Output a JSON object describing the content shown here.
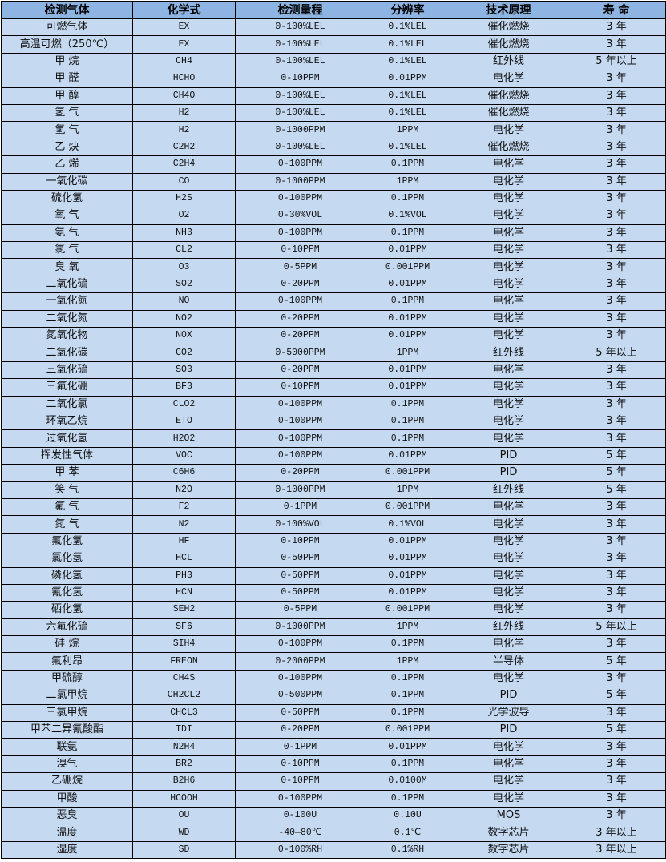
{
  "headers": [
    "检测气体",
    "化学式",
    "检测量程",
    "分辨率",
    "技术原理",
    "寿 命"
  ],
  "colors": {
    "header_bg": "#8DB4E2",
    "row_bg": "#C5D9F1",
    "border": "#000000"
  },
  "rows": [
    [
      "可燃气体",
      "EX",
      "0-100%LEL",
      "0.1%LEL",
      "催化燃烧",
      "3 年"
    ],
    [
      "高温可燃（250℃）",
      "EX",
      "0-100%LEL",
      "0.1%LEL",
      "催化燃烧",
      "3 年"
    ],
    [
      "甲 烷",
      "CH4",
      "0-100%LEL",
      "0.1%LEL",
      "红外线",
      "5 年以上"
    ],
    [
      "甲 醛",
      "HCHO",
      "0-10PPM",
      "0.01PPM",
      "电化学",
      "3 年"
    ],
    [
      "甲 醇",
      "CH4O",
      "0-100%LEL",
      "0.1%LEL",
      "催化燃烧",
      "3 年"
    ],
    [
      "氢 气",
      "H2",
      "0-100%LEL",
      "0.1%LEL",
      "催化燃烧",
      "3 年"
    ],
    [
      "氢 气",
      "H2",
      "0-1000PPM",
      "1PPM",
      "电化学",
      "3 年"
    ],
    [
      "乙 炔",
      "C2H2",
      "0-100%LEL",
      "0.1%LEL",
      "催化燃烧",
      "3 年"
    ],
    [
      "乙 烯",
      "C2H4",
      "0-100PPM",
      "0.1PPM",
      "电化学",
      "3 年"
    ],
    [
      "一氧化碳",
      "CO",
      "0-1000PPM",
      "1PPM",
      "电化学",
      "3 年"
    ],
    [
      "硫化氢",
      "H2S",
      "0-100PPM",
      "0.1PPM",
      "电化学",
      "3 年"
    ],
    [
      "氧 气",
      "O2",
      "0-30%VOL",
      "0.1%VOL",
      "电化学",
      "3 年"
    ],
    [
      "氨 气",
      "NH3",
      "0-100PPM",
      "0.1PPM",
      "电化学",
      "3 年"
    ],
    [
      "氯 气",
      "CL2",
      "0-10PPM",
      "0.01PPM",
      "电化学",
      "3 年"
    ],
    [
      "臭 氧",
      "O3",
      "0-5PPM",
      "0.001PPM",
      "电化学",
      "3 年"
    ],
    [
      "二氧化硫",
      "SO2",
      "0-20PPM",
      "0.01PPM",
      "电化学",
      "3 年"
    ],
    [
      "一氧化氮",
      "NO",
      "0-100PPM",
      "0.1PPM",
      "电化学",
      "3 年"
    ],
    [
      "二氧化氮",
      "NO2",
      "0-20PPM",
      "0.01PPM",
      "电化学",
      "3 年"
    ],
    [
      "氮氧化物",
      "NOX",
      "0-20PPM",
      "0.01PPM",
      "电化学",
      "3 年"
    ],
    [
      "二氧化碳",
      "CO2",
      "0-5000PPM",
      "1PPM",
      "红外线",
      "5 年以上"
    ],
    [
      "三氧化硫",
      "SO3",
      "0-20PPM",
      "0.01PPM",
      "电化学",
      "3 年"
    ],
    [
      "三氟化硼",
      "BF3",
      "0-10PPM",
      "0.01PPM",
      "电化学",
      "3 年"
    ],
    [
      "二氧化氯",
      "CLO2",
      "0-100PPM",
      "0.1PPM",
      "电化学",
      "3 年"
    ],
    [
      "环氧乙烷",
      "ETO",
      "0-100PPM",
      "0.1PPM",
      "电化学",
      "3 年"
    ],
    [
      "过氧化氢",
      "H2O2",
      "0-100PPM",
      "0.1PPM",
      "电化学",
      "3 年"
    ],
    [
      "挥发性气体",
      "VOC",
      "0-100PPM",
      "0.01PPM",
      "PID",
      "5 年"
    ],
    [
      "甲 苯",
      "C6H6",
      "0-20PPM",
      "0.001PPM",
      "PID",
      "5 年"
    ],
    [
      "笑 气",
      "N2O",
      "0-1000PPM",
      "1PPM",
      "红外线",
      "5 年"
    ],
    [
      "氟 气",
      "F2",
      "0-1PPM",
      "0.001PPM",
      "电化学",
      "3 年"
    ],
    [
      "氮 气",
      "N2",
      "0-100%VOL",
      "0.1%VOL",
      "电化学",
      "3 年"
    ],
    [
      "氟化氢",
      "HF",
      "0-10PPM",
      "0.01PPM",
      "电化学",
      "3 年"
    ],
    [
      "氯化氢",
      "HCL",
      "0-50PPM",
      "0.01PPM",
      "电化学",
      "3 年"
    ],
    [
      "磷化氢",
      "PH3",
      "0-50PPM",
      "0.01PPM",
      "电化学",
      "3 年"
    ],
    [
      "氰化氢",
      "HCN",
      "0-50PPM",
      "0.01PPM",
      "电化学",
      "3 年"
    ],
    [
      "硒化氢",
      "SEH2",
      "0-5PPM",
      "0.001PPM",
      "电化学",
      "3 年"
    ],
    [
      "六氟化硫",
      "SF6",
      "0-1000PPM",
      "1PPM",
      "红外线",
      "5 年以上"
    ],
    [
      "硅 烷",
      "SIH4",
      "0-100PPM",
      "0.1PPM",
      "电化学",
      "3 年"
    ],
    [
      "氟利昂",
      "FREON",
      "0-2000PPM",
      "1PPM",
      "半导体",
      "5 年"
    ],
    [
      "甲硫醇",
      "CH4S",
      "0-100PPM",
      "0.1PPM",
      "电化学",
      "3 年"
    ],
    [
      "二氯甲烷",
      "CH2CL2",
      "0-500PPM",
      "0.1PPM",
      "PID",
      "5 年"
    ],
    [
      "三氯甲烷",
      "CHCL3",
      "0-50PPM",
      "0.1PPM",
      "光学波导",
      "3 年"
    ],
    [
      "甲苯二异氰酸酯",
      "TDI",
      "0-20PPM",
      "0.001PPM",
      "PID",
      "5 年"
    ],
    [
      "联氨",
      "N2H4",
      "0-1PPM",
      "0.01PPM",
      "电化学",
      "3 年"
    ],
    [
      "溴气",
      "BR2",
      "0-10PPM",
      "0.1PPM",
      "电化学",
      "3 年"
    ],
    [
      "乙硼烷",
      "B2H6",
      "0-10PPM",
      "0.0100M",
      "电化学",
      "3 年"
    ],
    [
      "甲酸",
      "HCOOH",
      "0-100PPM",
      "0.1PPM",
      "电化学",
      "3 年"
    ],
    [
      "恶臭",
      "OU",
      "0-100U",
      "0.10U",
      "MOS",
      "3 年"
    ],
    [
      "温度",
      "WD",
      "-40—80℃",
      "0.1℃",
      "数字芯片",
      "3 年以上"
    ],
    [
      "湿度",
      "SD",
      "0-100%RH",
      "0.1%RH",
      "数字芯片",
      "3 年以上"
    ]
  ]
}
